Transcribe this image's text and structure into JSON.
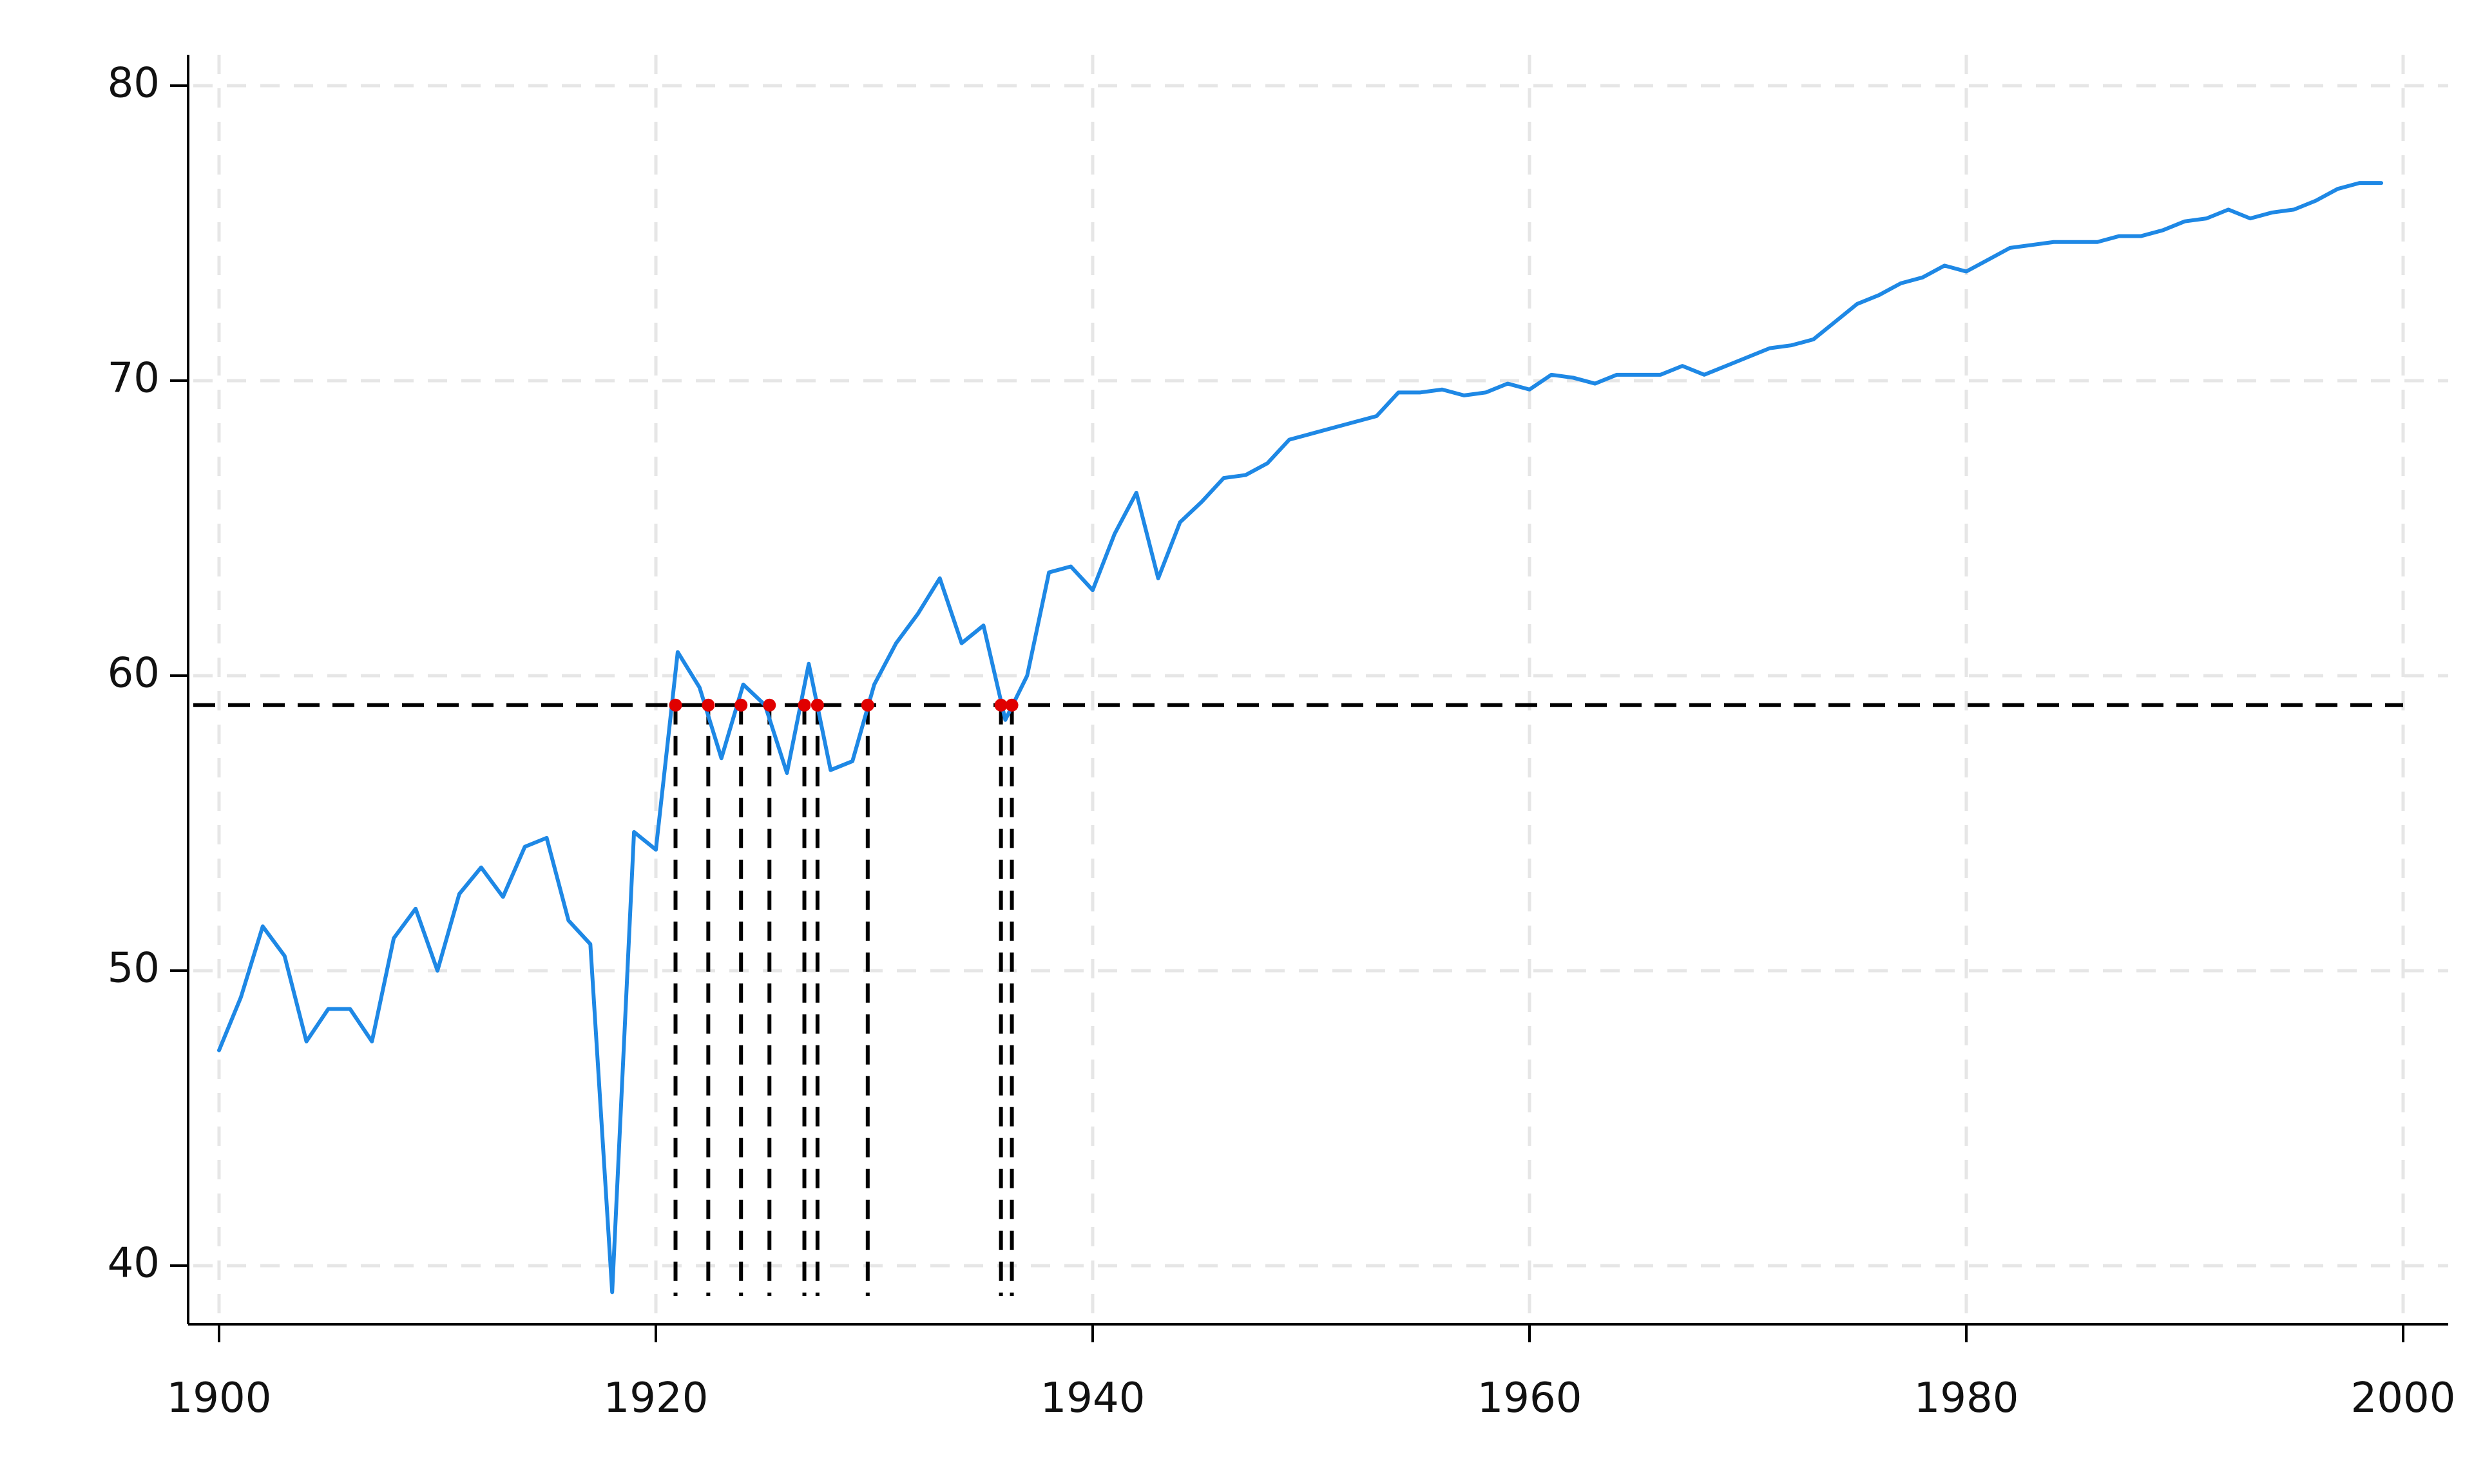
{
  "chart_data": {
    "type": "line",
    "title": "",
    "xlabel": "",
    "ylabel": "",
    "xlim": [
      1899,
      2001
    ],
    "ylim": [
      38.8,
      81.0
    ],
    "xticks": [
      1900,
      1920,
      1940,
      1960,
      1980,
      2000
    ],
    "yticks": [
      40,
      50,
      60,
      70,
      80
    ],
    "grid": true,
    "colors": {
      "series": "#1E88E5",
      "threshold": "#000000",
      "crossings": "#E00000",
      "grid": "#E6E6E6",
      "axis": "#000000"
    },
    "series": [
      {
        "x": [
          1900,
          1901,
          1902,
          1903,
          1904,
          1905,
          1906,
          1907,
          1908,
          1909,
          1910,
          1911,
          1912,
          1913,
          1914,
          1915,
          1916,
          1917,
          1918,
          1919,
          1920,
          1921,
          1922,
          1923,
          1924,
          1925,
          1926,
          1927,
          1928,
          1929,
          1930,
          1931,
          1932,
          1933,
          1934,
          1935,
          1936,
          1937,
          1938,
          1939,
          1940,
          1941,
          1942,
          1943,
          1944,
          1945,
          1946,
          1947,
          1948,
          1949,
          1950,
          1951,
          1952,
          1953,
          1954,
          1955,
          1956,
          1957,
          1958,
          1959,
          1960,
          1961,
          1962,
          1963,
          1964,
          1965,
          1966,
          1967,
          1968,
          1969,
          1970,
          1971,
          1972,
          1973,
          1974,
          1975,
          1976,
          1977,
          1978,
          1979,
          1980,
          1981,
          1982,
          1983,
          1984,
          1985,
          1986,
          1987,
          1988,
          1989,
          1990,
          1991,
          1992,
          1993,
          1994,
          1995,
          1996,
          1997,
          1998,
          1999
        ],
        "values": [
          47.3,
          49.1,
          51.5,
          50.5,
          47.6,
          48.7,
          48.7,
          47.6,
          51.1,
          52.1,
          50.0,
          52.6,
          53.5,
          52.5,
          54.2,
          54.5,
          51.7,
          50.9,
          39.1,
          54.7,
          54.1,
          60.8,
          59.6,
          57.2,
          59.7,
          59.0,
          56.7,
          60.4,
          56.8,
          57.1,
          59.7,
          61.1,
          62.1,
          63.3,
          61.1,
          61.7,
          58.5,
          60.0,
          63.5,
          63.7,
          62.9,
          64.8,
          66.2,
          63.3,
          65.2,
          65.9,
          66.7,
          66.8,
          67.2,
          68.0,
          68.2,
          68.4,
          68.6,
          68.8,
          69.6,
          69.6,
          69.7,
          69.5,
          69.6,
          69.9,
          69.7,
          70.2,
          70.1,
          69.9,
          70.2,
          70.2,
          70.2,
          70.5,
          70.2,
          70.5,
          70.8,
          71.1,
          71.2,
          71.4,
          72.0,
          72.6,
          72.9,
          73.3,
          73.5,
          73.9,
          73.7,
          74.1,
          74.5,
          74.6,
          74.7,
          74.7,
          74.7,
          74.9,
          74.9,
          75.1,
          75.4,
          75.5,
          75.8,
          75.5,
          75.7,
          75.8,
          76.1,
          76.5,
          76.7,
          76.7
        ]
      }
    ],
    "threshold": 59.0,
    "crossings": [
      1920.9,
      1922.4,
      1923.9,
      1925.2,
      1926.8,
      1927.4,
      1929.7,
      1935.8,
      1936.3
    ]
  }
}
